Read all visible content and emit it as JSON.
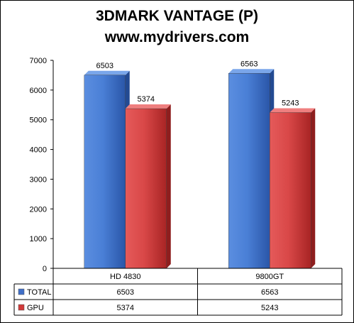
{
  "chart_data": {
    "type": "bar",
    "title": "3DMARK VANTAGE (P)",
    "subtitle": "www.mydrivers.com",
    "categories": [
      "HD 4830",
      "9800GT"
    ],
    "series": [
      {
        "name": "TOTAL",
        "values": [
          6503,
          6563
        ],
        "color": "#3f6fc8"
      },
      {
        "name": "GPU",
        "values": [
          5374,
          5243
        ],
        "color": "#d23a3a"
      }
    ],
    "ylim": [
      0,
      7000
    ],
    "yticks": [
      "0",
      "1000",
      "2000",
      "3000",
      "4000",
      "5000",
      "6000",
      "7000"
    ],
    "grid": false,
    "legend": "data-table"
  }
}
